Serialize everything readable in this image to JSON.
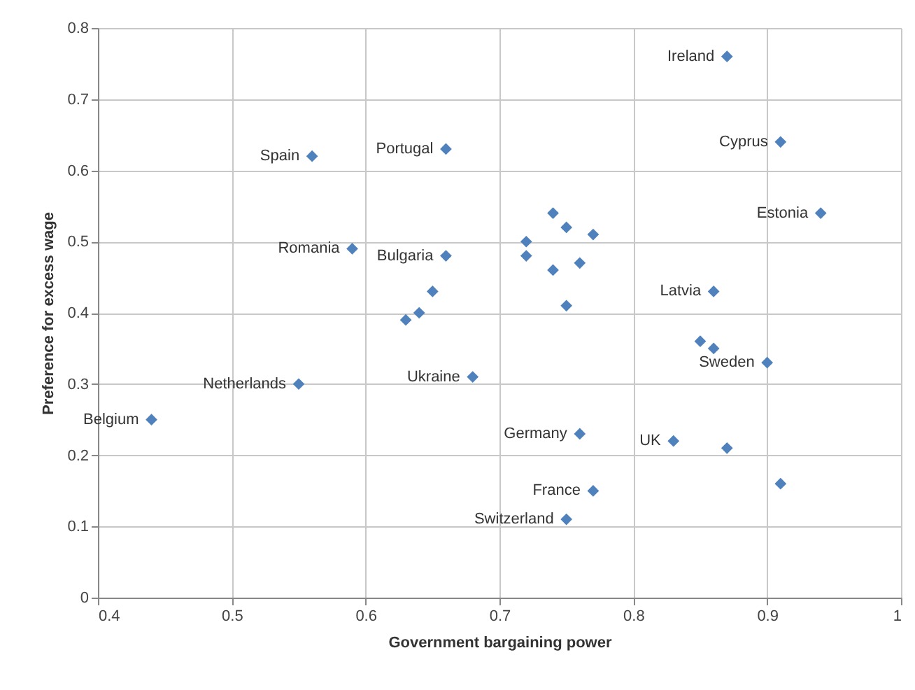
{
  "chart_data": {
    "type": "scatter",
    "xlabel": "Government bargaining power",
    "ylabel": "Preference for excess wage",
    "x": [
      0.87,
      0.91,
      0.94,
      0.56,
      0.66,
      0.59,
      0.66,
      0.65,
      0.64,
      0.63,
      0.74,
      0.75,
      0.77,
      0.72,
      0.72,
      0.74,
      0.76,
      0.75,
      0.86,
      0.85,
      0.86,
      0.9,
      0.55,
      0.68,
      0.44,
      0.76,
      0.83,
      0.87,
      0.77,
      0.75,
      0.91
    ],
    "series": [
      {
        "color": "#4f81bd",
        "values": [
          0.76,
          0.64,
          0.54,
          0.62,
          0.63,
          0.49,
          0.48,
          0.43,
          0.4,
          0.39,
          0.54,
          0.52,
          0.51,
          0.5,
          0.48,
          0.46,
          0.47,
          0.41,
          0.43,
          0.36,
          0.35,
          0.33,
          0.3,
          0.31,
          0.25,
          0.23,
          0.22,
          0.21,
          0.15,
          0.11,
          0.16
        ]
      }
    ],
    "xlim": [
      0.4,
      1
    ],
    "xticks": [
      0.4,
      0.5,
      0.6,
      0.7,
      0.8,
      0.9,
      1
    ],
    "ylim": [
      0,
      0.8
    ],
    "yticks": [
      0,
      0.1,
      0.2,
      0.3,
      0.4,
      0.5,
      0.6,
      0.7,
      0.8
    ],
    "grid": true,
    "marker": "diamond",
    "annotations": [
      {
        "text": "Ireland",
        "x": 0.87,
        "y": 0.76
      },
      {
        "text": "Cyprus",
        "x": 0.91,
        "y": 0.64
      },
      {
        "text": "Estonia",
        "x": 0.94,
        "y": 0.54
      },
      {
        "text": "Spain",
        "x": 0.56,
        "y": 0.62
      },
      {
        "text": "Portugal",
        "x": 0.66,
        "y": 0.63
      },
      {
        "text": "Romania",
        "x": 0.59,
        "y": 0.49
      },
      {
        "text": "Bulgaria",
        "x": 0.66,
        "y": 0.48
      },
      {
        "text": "Latvia",
        "x": 0.86,
        "y": 0.43
      },
      {
        "text": "Sweden",
        "x": 0.9,
        "y": 0.33
      },
      {
        "text": "Netherlands",
        "x": 0.55,
        "y": 0.3
      },
      {
        "text": "Ukraine",
        "x": 0.68,
        "y": 0.31
      },
      {
        "text": "Belgium",
        "x": 0.44,
        "y": 0.25
      },
      {
        "text": "Germany",
        "x": 0.76,
        "y": 0.23
      },
      {
        "text": "UK",
        "x": 0.83,
        "y": 0.22
      },
      {
        "text": "France",
        "x": 0.77,
        "y": 0.15
      },
      {
        "text": "Switzerland",
        "x": 0.75,
        "y": 0.11
      }
    ]
  }
}
